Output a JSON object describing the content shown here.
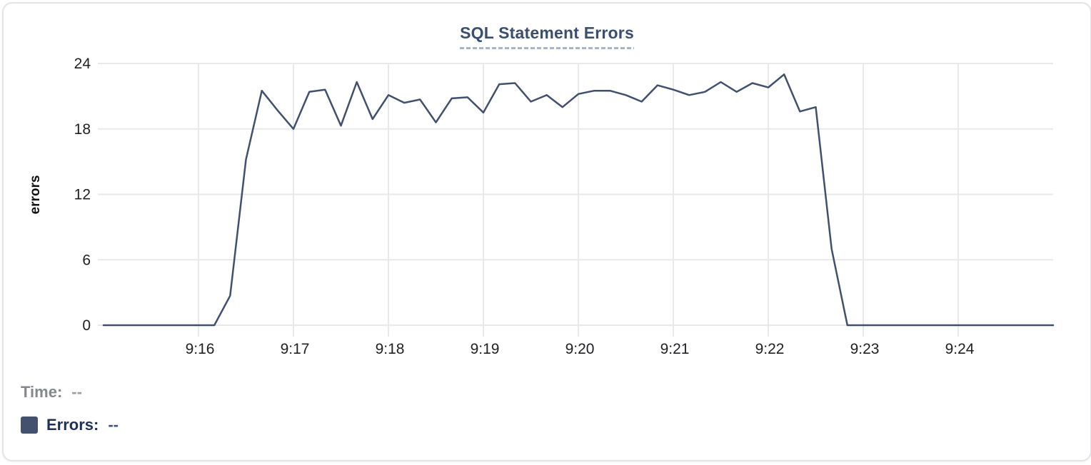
{
  "title": {
    "text": "SQL Statement Errors",
    "color": "#3a4e71",
    "underline_color": "#a9b4c9"
  },
  "legend": {
    "time_label": "Time:",
    "time_value": "--",
    "errors_label": "Errors:",
    "errors_value": "--",
    "swatch_color": "#44516e"
  },
  "chart_data": {
    "type": "line",
    "title": "SQL Statement Errors",
    "xlabel": "",
    "ylabel": "errors",
    "ylim": [
      0,
      24
    ],
    "y_ticks": [
      0,
      6,
      12,
      18,
      24
    ],
    "x_start": "9:15:00",
    "x_end": "9:25:00",
    "sample_interval_seconds": 10,
    "x_tick_labels": [
      "9:16",
      "9:17",
      "9:18",
      "9:19",
      "9:20",
      "9:21",
      "9:22",
      "9:23",
      "9:24"
    ],
    "x_tick_sample_indices": [
      6,
      12,
      18,
      24,
      30,
      36,
      42,
      48,
      54
    ],
    "grid": true,
    "legend_position": "bottom-left",
    "line_color": "#40506e",
    "grid_color": "#e9e9e9",
    "series": [
      {
        "name": "Errors",
        "values": [
          0,
          0,
          0,
          0,
          0,
          0,
          0,
          0,
          2.7,
          15.2,
          21.5,
          19.7,
          18,
          21.4,
          21.6,
          18.3,
          22.3,
          18.9,
          21.1,
          20.4,
          20.7,
          18.6,
          20.8,
          20.9,
          19.5,
          22.1,
          22.2,
          20.5,
          21.1,
          20,
          21.2,
          21.5,
          21.5,
          21.1,
          20.5,
          22,
          21.6,
          21.1,
          21.4,
          22.3,
          21.4,
          22.2,
          21.8,
          23,
          19.6,
          20,
          7,
          0,
          0,
          0,
          0,
          0,
          0,
          0,
          0,
          0,
          0,
          0,
          0,
          0,
          0
        ]
      }
    ]
  }
}
